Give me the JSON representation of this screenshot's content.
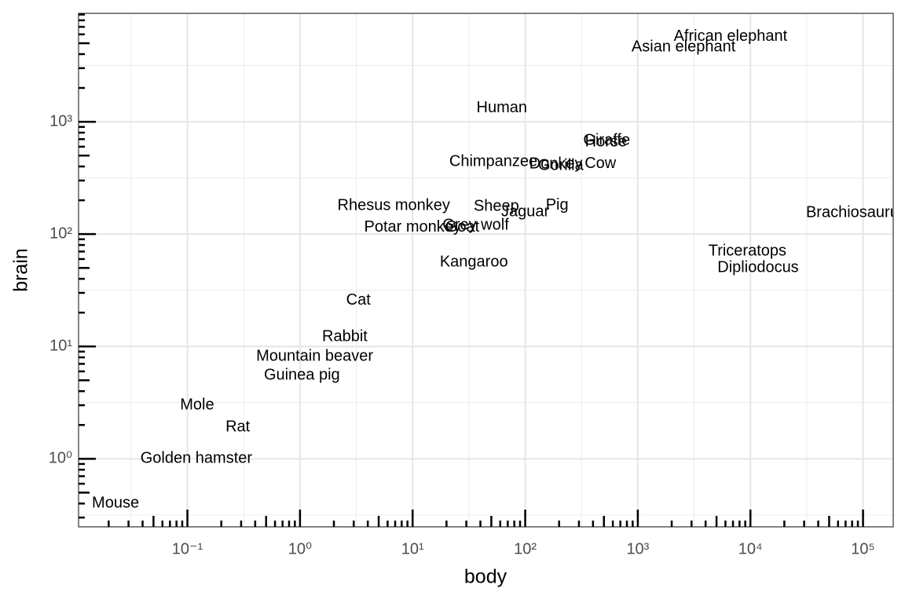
{
  "chart_data": {
    "type": "text-scatter",
    "x_label": "body",
    "y_label": "brain",
    "xscale": "log",
    "yscale": "log",
    "grid": true,
    "logticks": true,
    "color": "#000000",
    "xlim": [
      0.0108,
      185400
    ],
    "ylim": [
      0.248,
      9226
    ],
    "xticks": [
      {
        "value": 0.1,
        "label": "10⁻¹"
      },
      {
        "value": 1,
        "label": "10⁰"
      },
      {
        "value": 10,
        "label": "10¹"
      },
      {
        "value": 100,
        "label": "10²"
      },
      {
        "value": 1000,
        "label": "10³"
      },
      {
        "value": 10000,
        "label": "10⁴"
      },
      {
        "value": 100000,
        "label": "10⁵"
      }
    ],
    "yticks": [
      {
        "value": 1,
        "label": "10⁰"
      },
      {
        "value": 10,
        "label": "10¹"
      },
      {
        "value": 100,
        "label": "10²"
      },
      {
        "value": 1000,
        "label": "10³"
      }
    ],
    "labels": [
      "Mountain beaver",
      "Cow",
      "Grey wolf",
      "Goat",
      "Guinea pig",
      "Dipliodocus",
      "Asian elephant",
      "Donkey",
      "Horse",
      "Potar monkey",
      "Cat",
      "Giraffe",
      "Gorilla",
      "Human",
      "African elephant",
      "Triceratops",
      "Rhesus monkey",
      "Kangaroo",
      "Golden hamster",
      "Mouse",
      "Rabbit",
      "Sheep",
      "Jaguar",
      "Chimpanzee",
      "Rat",
      "Brachiosaurus",
      "Mole",
      "Pig"
    ],
    "x": [
      1.35,
      465,
      36.33,
      27.66,
      1.04,
      11700,
      2547,
      187.1,
      521,
      10,
      3.3,
      529,
      207,
      62,
      6654,
      9400,
      6.8,
      35,
      0.12,
      0.023,
      2.5,
      55.5,
      100,
      52.16,
      0.28,
      87000,
      0.122,
      192
    ],
    "y": [
      8.1,
      423,
      119.5,
      115,
      5.5,
      50,
      4603,
      419,
      655,
      115,
      25.6,
      680,
      406,
      1320,
      5712,
      70,
      179,
      56,
      1,
      0.4,
      12.1,
      175,
      157,
      440,
      1.9,
      154.5,
      3,
      180
    ]
  }
}
